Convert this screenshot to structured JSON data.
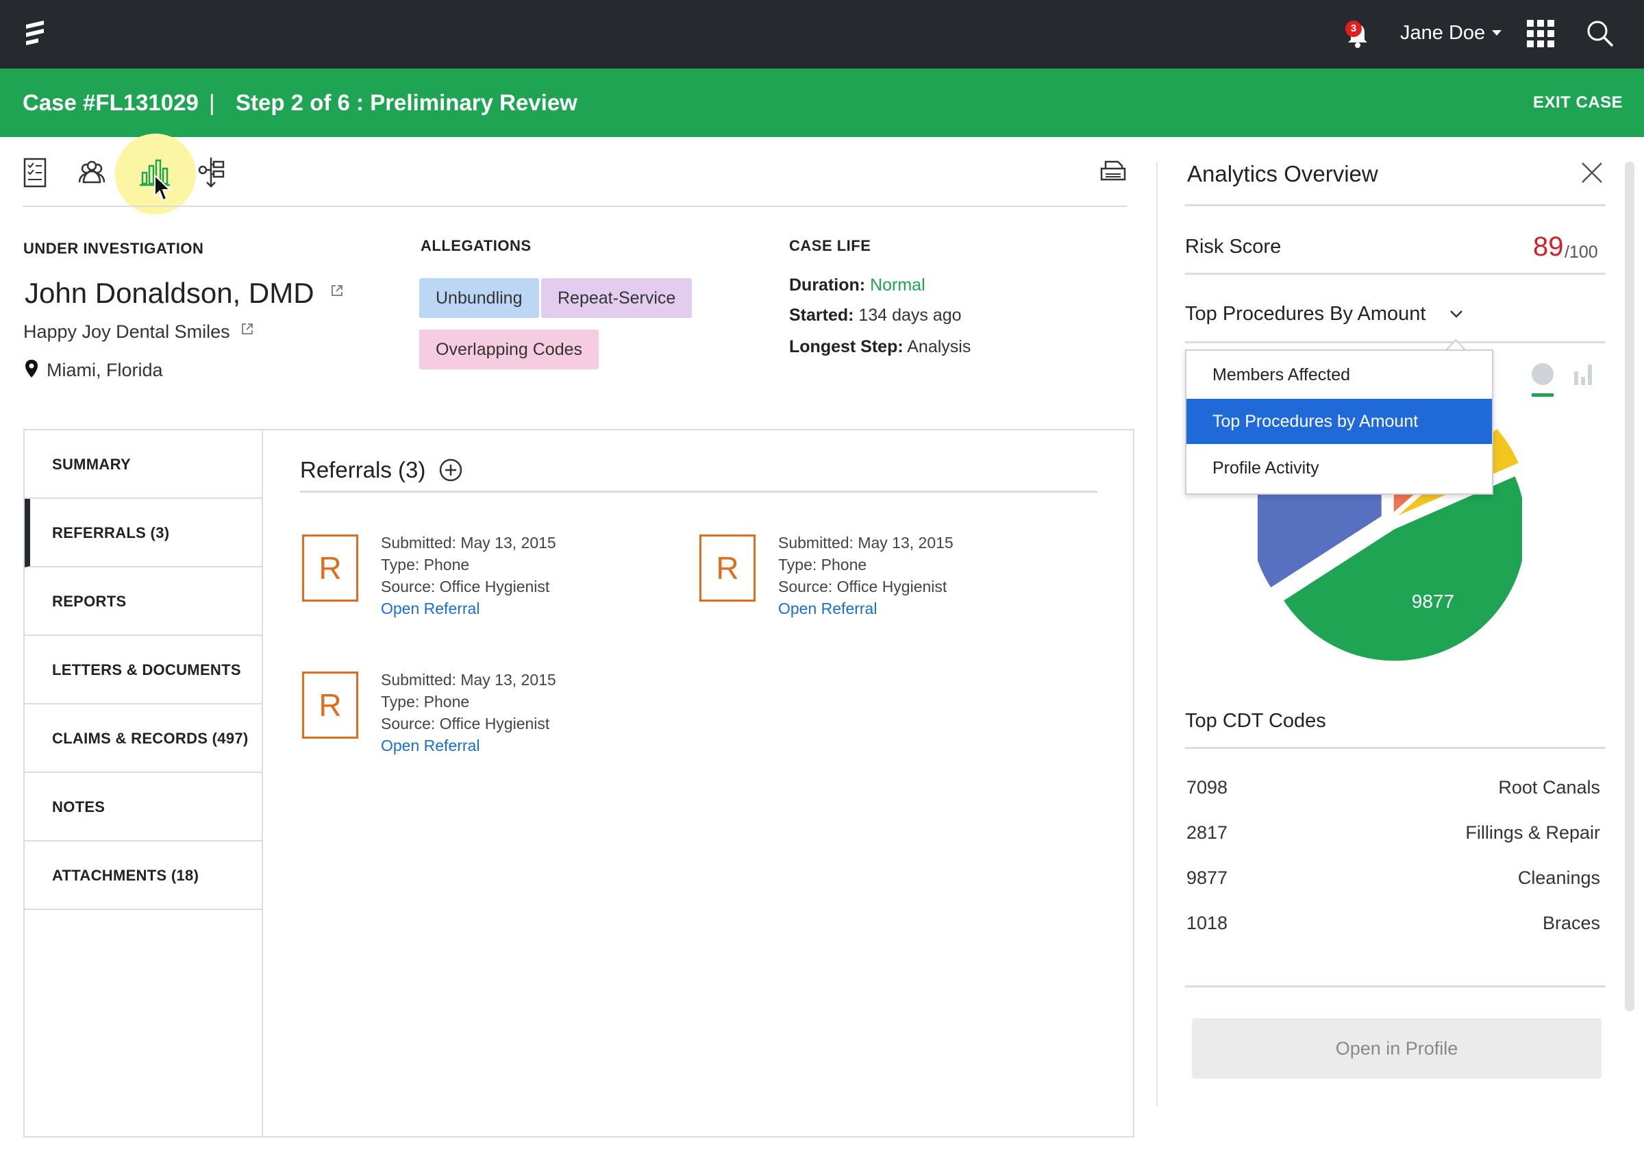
{
  "topbar": {
    "notification_count": "3",
    "user_name": "Jane Doe",
    "icons": [
      "logo-icon",
      "bell-icon",
      "caret-down-icon",
      "apps-grid-icon",
      "search-icon"
    ]
  },
  "casebar": {
    "case_title": "Case #FL131029",
    "separator": "|",
    "step": "Step 2 of 6 : Preliminary Review",
    "exit_label": "EXIT CASE",
    "color": "#1fa453"
  },
  "toolbar": {
    "icons": [
      "checklist-icon",
      "people-icon",
      "bar-chart-icon",
      "workflow-icon",
      "print-icon"
    ]
  },
  "subject": {
    "section_label": "UNDER INVESTIGATION",
    "name": "John Donaldson, DMD",
    "organization": "Happy Joy Dental Smiles",
    "location": "Miami, Florida"
  },
  "allegations": {
    "label": "ALLEGATIONS",
    "tags": [
      "Unbundling",
      "Repeat-Service",
      "Overlapping Codes"
    ]
  },
  "case_life": {
    "label": "CASE LIFE",
    "duration_label": "Duration:",
    "duration_value": "Normal",
    "started_label": "Started:",
    "started_value": "134 days ago",
    "longest_label": "Longest Step:",
    "longest_value": "Analysis"
  },
  "nav": {
    "items": [
      "SUMMARY",
      "REFERRALS (3)",
      "REPORTS",
      "LETTERS & DOCUMENTS",
      "CLAIMS & RECORDS (497)",
      "NOTES",
      "ATTACHMENTS (18)"
    ],
    "active": "REFERRALS (3)"
  },
  "referrals": {
    "title": "Referrals (3)",
    "items": [
      {
        "badge": "R",
        "submitted": "Submitted: May 13, 2015",
        "type": "Type: Phone",
        "source": "Source: Office Hygienist",
        "link": "Open Referral"
      },
      {
        "badge": "R",
        "submitted": "Submitted: May 13, 2015",
        "type": "Type: Phone",
        "source": "Source: Office Hygienist",
        "link": "Open Referral"
      },
      {
        "badge": "R",
        "submitted": "Submitted: May 13, 2015",
        "type": "Type: Phone",
        "source": "Source: Office Hygienist",
        "link": "Open Referral"
      }
    ]
  },
  "panel": {
    "title": "Analytics Overview",
    "risk_label": "Risk Score",
    "risk_score": "89",
    "risk_max": "/100",
    "procedures_title": "Top Procedures By Amount",
    "dropdown_options": [
      "Members Affected",
      "Top Procedures by Amount",
      "Profile Activity"
    ],
    "dropdown_selected": "Top Procedures by Amount",
    "cdt_title": "Top CDT Codes",
    "cdt_rows": [
      {
        "code": "7098",
        "name": "Root Canals"
      },
      {
        "code": "2817",
        "name": "Fillings & Repair"
      },
      {
        "code": "9877",
        "name": "Cleanings"
      },
      {
        "code": "1018",
        "name": "Braces"
      }
    ],
    "open_profile_label": "Open in Profile"
  },
  "chart_data": {
    "type": "pie",
    "slices": [
      {
        "label": "7098",
        "value": 7098,
        "color": "#5870c0"
      },
      {
        "label": "2817",
        "value": 2817,
        "color": "#ef7556"
      },
      {
        "label": "1018",
        "value": 1018,
        "color": "#f2c61f"
      },
      {
        "label": "9877",
        "value": 9877,
        "color": "#1fa453"
      }
    ]
  }
}
